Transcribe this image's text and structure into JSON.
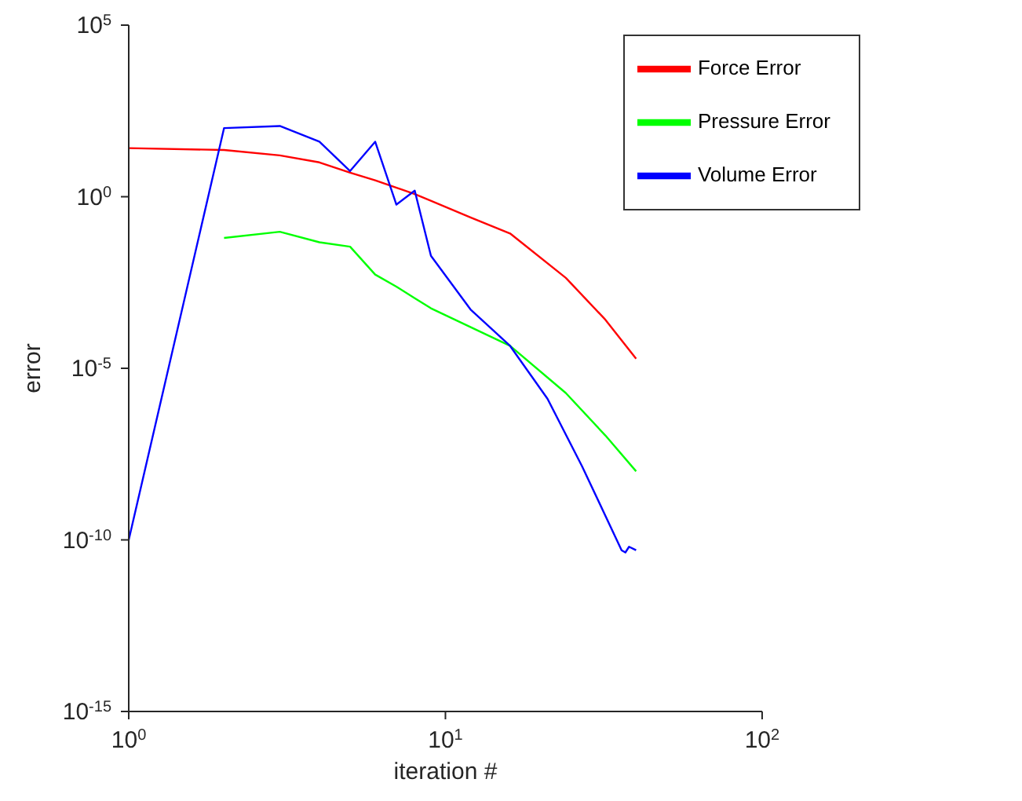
{
  "chart_data": {
    "type": "line",
    "xlabel": "iteration #",
    "ylabel": "error",
    "log": "xy",
    "grid": false,
    "legend": "top right",
    "marker": "none",
    "line_style": "solid",
    "xlim": [
      1,
      100
    ],
    "xticks": [
      {
        "value": 1,
        "label": "10$^{0}$"
      },
      {
        "value": 10,
        "label": "10$^{1}$"
      },
      {
        "value": 100,
        "label": "10$^{2}$"
      }
    ],
    "ylim": [
      1e-15,
      100000
    ],
    "yticks": [
      {
        "value": 1e-15,
        "label": "10$^{-15}$"
      },
      {
        "value": 1e-10,
        "label": "10$^{-10}$"
      },
      {
        "value": 1e-05,
        "label": "10$^{-5}$"
      },
      {
        "value": 1,
        "label": "10$^{0}$"
      },
      {
        "value": 100000,
        "label": "10$^{5}$"
      }
    ],
    "series": [
      {
        "name": "Force Error",
        "color": "#ff0000",
        "x": [
          1,
          2,
          3,
          4,
          5,
          6,
          8,
          12,
          16,
          24,
          32,
          40
        ],
        "values": [
          26,
          23,
          16,
          10,
          5,
          3,
          1.2,
          0.25,
          0.085,
          0.0043,
          0.00026,
          1.9e-05
        ]
      },
      {
        "name": "Pressure Error",
        "color": "#00ff00",
        "x": [
          2,
          3,
          4,
          5,
          6,
          7,
          8,
          9,
          16,
          24,
          32,
          40
        ],
        "values": [
          0.063,
          0.095,
          0.047,
          0.035,
          0.0054,
          0.0024,
          0.0011,
          0.00056,
          4.5e-05,
          1.9e-06,
          1.1e-07,
          1e-08
        ]
      },
      {
        "name": "Volume Error",
        "color": "#0000ff",
        "x": [
          1,
          2,
          3,
          4,
          5,
          6,
          7,
          8,
          9,
          12,
          16,
          21,
          27,
          36,
          37,
          38,
          40
        ],
        "values": [
          1e-10,
          100,
          115,
          40,
          5.6,
          40,
          0.59,
          1.5,
          0.019,
          0.00052,
          4.5e-05,
          1.3e-06,
          1.4e-08,
          5e-11,
          4.3e-11,
          6.3e-11,
          5e-11
        ]
      }
    ]
  }
}
